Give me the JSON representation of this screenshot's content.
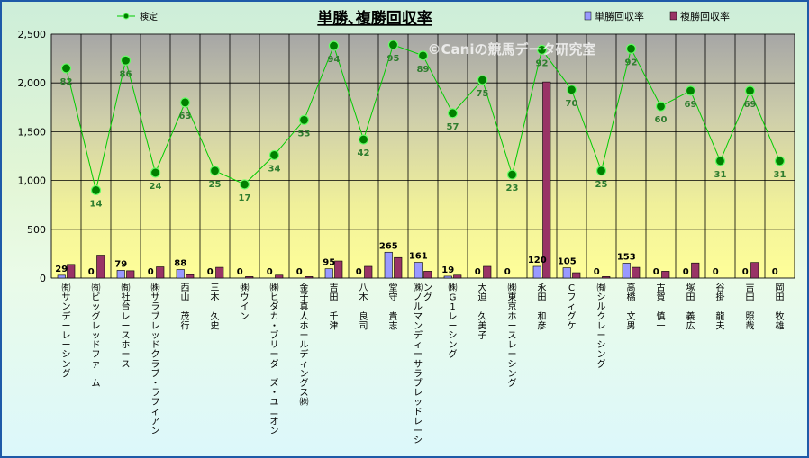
{
  "chart_data": {
    "type": "bar",
    "title": "単勝､複勝回収率",
    "watermark": "©Caniの競馬データ研究室",
    "ylim": [
      0,
      2500
    ],
    "yticks": [
      0,
      500,
      1000,
      1500,
      2000,
      2500
    ],
    "ytick_labels": [
      "0",
      "500",
      "1,000",
      "1,500",
      "2,000",
      "2,500"
    ],
    "grid": true,
    "legend_placement": "top",
    "categories": [
      "㈲サンデーレーシング",
      "㈲ビッグレッドファーム",
      "㈲社台レースホース",
      "㈱サラブレッドクラブ・ラフィアン",
      "西山　茂行",
      "三木　久史",
      "㈱ウイン",
      "㈱ヒダカ・ブリーダーズ・ユニオン",
      "金子真人ホールディングス㈱",
      "吉田　千津",
      "八木　良司",
      "堂守　貴志",
      "㈱ノルマンディーサラブレッドレーシング",
      "㈱G1レーシング",
      "大迫　久美子",
      "㈱東京ホースレーシング",
      "永田　和彦",
      "Cフィグケ",
      "㈲シルクレーシング",
      "高橋　文男",
      "古賀　慎一",
      "塚田　義広",
      "谷掛　龍夫",
      "吉田　照哉",
      "岡田　牧雄"
    ],
    "series": [
      {
        "name": "単勝回収率",
        "type": "bar",
        "color": "#9999ff",
        "values": [
          29,
          0,
          79,
          0,
          88,
          0,
          0,
          0,
          0,
          95,
          0,
          265,
          161,
          19,
          0,
          0,
          120,
          105,
          0,
          153,
          0,
          0,
          0,
          0,
          0
        ],
        "labels": [
          "29",
          "0",
          "79",
          "0",
          "88",
          "0",
          "0",
          "0",
          "0",
          "95",
          "0",
          "265",
          "161",
          "19",
          "0",
          "0",
          "120",
          "105",
          "0",
          "153",
          "0",
          "0",
          "0",
          "0",
          "0"
        ]
      },
      {
        "name": "複勝回収率",
        "type": "bar",
        "color": "#993366",
        "values": [
          140,
          235,
          75,
          115,
          35,
          110,
          15,
          30,
          15,
          175,
          120,
          210,
          70,
          30,
          120,
          0,
          2010,
          55,
          15,
          110,
          70,
          155,
          0,
          160,
          0
        ]
      },
      {
        "name": "検定",
        "type": "line",
        "color": "#00cc00",
        "marker_color": "#008000",
        "label_color": "#2e7d2e",
        "values": [
          2150,
          900,
          2230,
          1080,
          1800,
          1100,
          960,
          1260,
          1620,
          2380,
          1420,
          2390,
          2280,
          1690,
          2030,
          1060,
          2340,
          1930,
          1100,
          2350,
          1760,
          1920,
          1200,
          1920,
          1200
        ],
        "labels": [
          "82",
          "14",
          "86",
          "24",
          "63",
          "25",
          "17",
          "34",
          "53",
          "94",
          "42",
          "95",
          "89",
          "57",
          "75",
          "23",
          "92",
          "70",
          "25",
          "92",
          "60",
          "69",
          "31",
          "69",
          "31"
        ]
      }
    ]
  }
}
